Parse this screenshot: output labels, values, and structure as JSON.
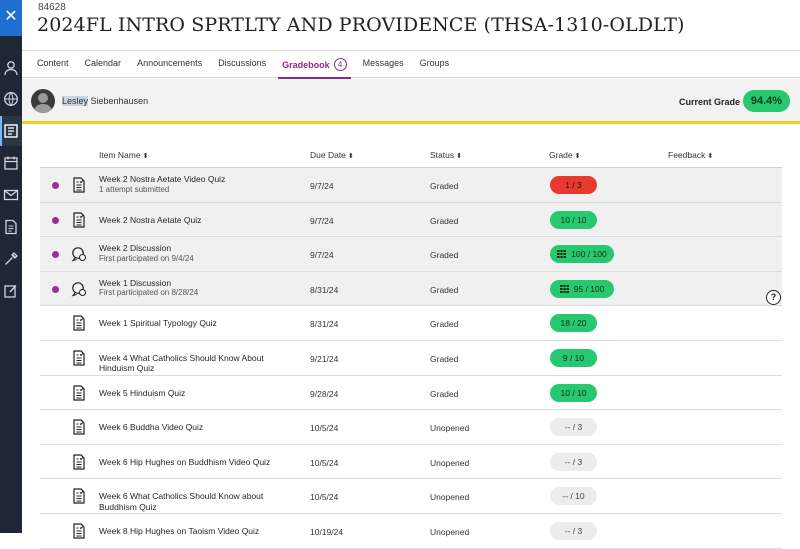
{
  "header": {
    "course_id": "84628",
    "course_title": "2024FL INTRO SPRTLTY AND PROVIDENCE (THSA-1310-OLDLT)"
  },
  "rail": {
    "close_label": "✕",
    "icons": [
      "user-icon",
      "globe-icon",
      "courses-icon",
      "calendar-icon",
      "mail-icon",
      "grades-icon",
      "tools-icon",
      "edit-icon"
    ]
  },
  "tabs": [
    {
      "label": "Content"
    },
    {
      "label": "Calendar"
    },
    {
      "label": "Announcements"
    },
    {
      "label": "Discussions"
    },
    {
      "label": "Gradebook",
      "count": "4",
      "active": true
    },
    {
      "label": "Messages"
    },
    {
      "label": "Groups"
    }
  ],
  "student": {
    "first_name": "Lesley",
    "last_name": "Siebenhausen",
    "current_grade_label": "Current Grade",
    "current_grade_value": "94.4%"
  },
  "table": {
    "columns": {
      "item_name": "Item Name",
      "due_date": "Due Date",
      "status": "Status",
      "grade": "Grade",
      "feedback": "Feedback"
    },
    "sort_glyph": "⬍",
    "rows": [
      {
        "name": "Week 2 Nostra Aetate Video Quiz",
        "sub": "1 attempt submitted",
        "due": "9/7/24",
        "status": "Graded",
        "grade": "1 / 3",
        "grade_style": "red",
        "new": true,
        "icon": "quiz-icon",
        "shaded": true
      },
      {
        "name": "Week 2 Nostra Aetate Quiz",
        "sub": "",
        "due": "9/7/24",
        "status": "Graded",
        "grade": "10 / 10",
        "grade_style": "green",
        "new": true,
        "icon": "quiz-icon",
        "shaded": true
      },
      {
        "name": "Week 2 Discussion",
        "sub": "First participated on 9/4/24",
        "due": "9/7/24",
        "status": "Graded",
        "grade": "100 / 100",
        "grade_style": "green",
        "rubric": true,
        "new": true,
        "icon": "discussion-icon",
        "shaded": true
      },
      {
        "name": "Week 1 Discussion",
        "sub": "First participated on 8/28/24",
        "due": "8/31/24",
        "status": "Graded",
        "grade": "95 / 100",
        "grade_style": "green",
        "rubric": true,
        "new": true,
        "icon": "discussion-icon",
        "shaded": true
      },
      {
        "name": "Week 1 Spiritual Typology Quiz",
        "sub": "",
        "due": "8/31/24",
        "status": "Graded",
        "grade": "18 / 20",
        "grade_style": "green",
        "new": false,
        "icon": "quiz-icon",
        "shaded": false
      },
      {
        "name": "Week 4 What Catholics Should Know About Hinduism Quiz",
        "sub": "",
        "due": "9/21/24",
        "status": "Graded",
        "grade": "9 / 10",
        "grade_style": "green",
        "new": false,
        "icon": "quiz-icon",
        "shaded": false
      },
      {
        "name": "Week 5 Hinduism Quiz",
        "sub": "",
        "due": "9/28/24",
        "status": "Graded",
        "grade": "10 / 10",
        "grade_style": "green",
        "new": false,
        "icon": "quiz-icon",
        "shaded": false
      },
      {
        "name": "Week 6 Buddha Video Quiz",
        "sub": "",
        "due": "10/5/24",
        "status": "Unopened",
        "grade": "-- / 3",
        "grade_style": "grey",
        "new": false,
        "icon": "quiz-icon",
        "shaded": false
      },
      {
        "name": "Week 6 Hip Hughes on Buddhism Video Quiz",
        "sub": "",
        "due": "10/5/24",
        "status": "Unopened",
        "grade": "-- / 3",
        "grade_style": "grey",
        "new": false,
        "icon": "quiz-icon",
        "shaded": false
      },
      {
        "name": "Week 6 What Catholics Should Know about Buddhism Quiz",
        "sub": "",
        "due": "10/5/24",
        "status": "Unopened",
        "grade": "-- / 10",
        "grade_style": "grey",
        "new": false,
        "icon": "quiz-icon",
        "shaded": false
      },
      {
        "name": "Week 8 Hip Hughes on Taoism Video Quiz",
        "sub": "",
        "due": "10/19/24",
        "status": "Unopened",
        "grade": "-- / 3",
        "grade_style": "grey",
        "new": false,
        "icon": "quiz-icon",
        "shaded": false
      }
    ]
  },
  "help_label": "?"
}
